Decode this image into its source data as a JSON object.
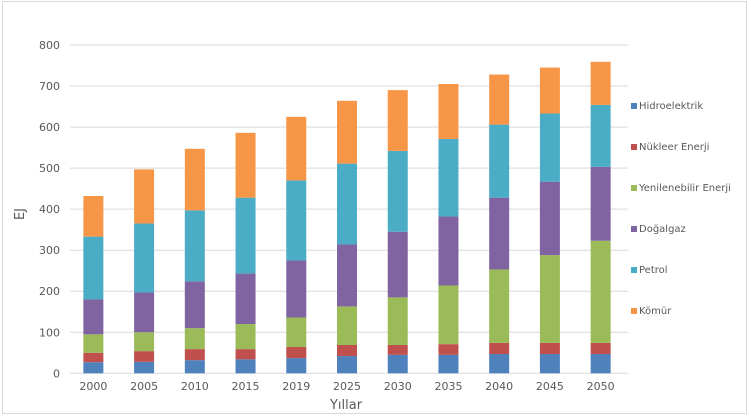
{
  "chart_data": {
    "type": "bar",
    "stacked": true,
    "title": "",
    "xlabel": "Yıllar",
    "ylabel": "EJ",
    "ylim": [
      0,
      800
    ],
    "yticks": [
      0,
      100,
      200,
      300,
      400,
      500,
      600,
      700,
      800
    ],
    "grid": true,
    "legend_position": "right",
    "categories": [
      "2000",
      "2005",
      "2010",
      "2015",
      "2019",
      "2025",
      "2030",
      "2035",
      "2040",
      "2045",
      "2050"
    ],
    "series": [
      {
        "name": "Hidroelektrik",
        "color": "#4f81bd",
        "values": [
          27,
          28,
          32,
          34,
          37,
          42,
          45,
          45,
          47,
          47,
          47
        ]
      },
      {
        "name": "Nükleer Enerji",
        "color": "#c0504d",
        "values": [
          23,
          26,
          27,
          25,
          27,
          27,
          24,
          26,
          27,
          27,
          27
        ]
      },
      {
        "name": "Yenilenebilir Enerji",
        "color": "#9bbb59",
        "values": [
          45,
          46,
          51,
          61,
          72,
          94,
          116,
          143,
          179,
          214,
          249
        ]
      },
      {
        "name": "Doğalgaz",
        "color": "#8064a2",
        "values": [
          85,
          97,
          114,
          123,
          139,
          151,
          160,
          168,
          175,
          179,
          180
        ]
      },
      {
        "name": "Petrol",
        "color": "#4bacc6",
        "values": [
          153,
          168,
          173,
          185,
          195,
          197,
          197,
          189,
          178,
          166,
          151
        ]
      },
      {
        "name": "Kömür",
        "color": "#f79646",
        "values": [
          99,
          132,
          150,
          158,
          155,
          153,
          148,
          134,
          122,
          112,
          105
        ]
      }
    ]
  }
}
